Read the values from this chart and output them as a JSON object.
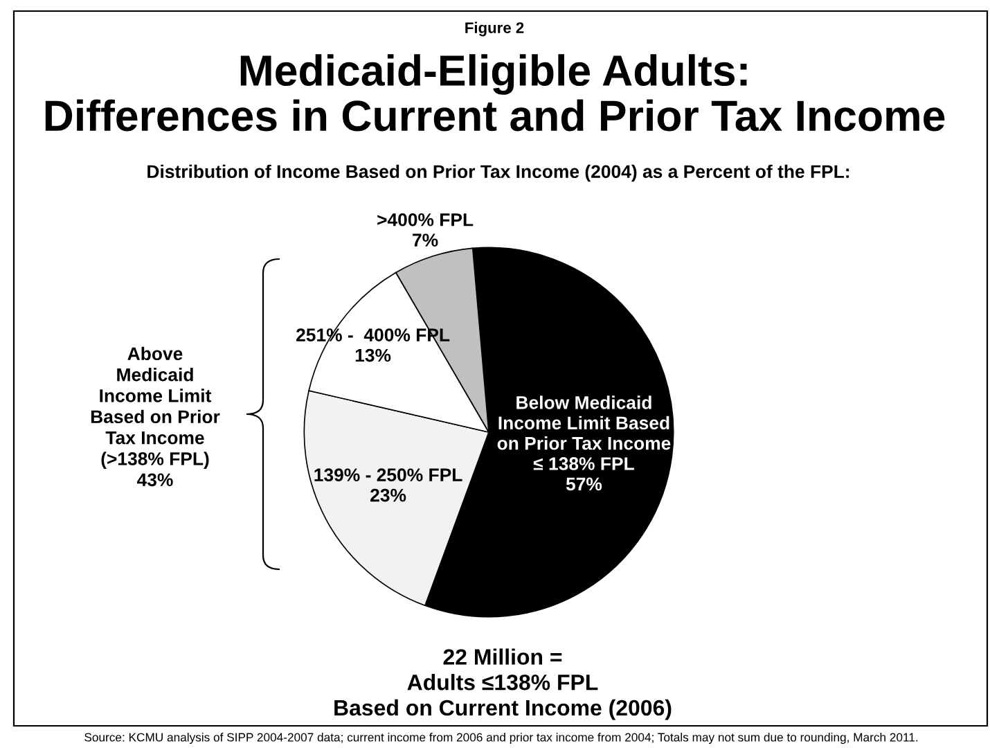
{
  "chart_data": {
    "type": "pie",
    "title": "Medicaid-Eligible Adults:\nDifferences in Current and Prior Tax Income",
    "subtitle": "Distribution of Income Based on Prior Tax Income (2004) as a Percent of the FPL:",
    "categories": [
      "Below Medicaid\nIncome Limit Based\non Prior Tax Income\n≤ 138% FPL",
      "139% - 250% FPL",
      "251% -  400% FPL",
      ">400% FPL"
    ],
    "values": [
      57,
      23,
      13,
      7
    ],
    "value_labels": [
      "57%",
      "23%",
      "13%",
      "7%"
    ],
    "colors": [
      "#000000",
      "#f2f2f2",
      "#ffffff",
      "#c0c0c0"
    ],
    "annotations": [
      "Figure 2",
      "Above\nMedicaid\nIncome Limit\nBased on Prior\nTax Income\n(>138% FPL)\n43%",
      "22 Million =\nAdults ≤138% FPL\nBased on Current Income (2006)",
      "Source: KCMU analysis of SIPP 2004-2007 data; current income from 2006 and prior tax income from 2004; Totals may not sum due to rounding, March 2011."
    ]
  }
}
